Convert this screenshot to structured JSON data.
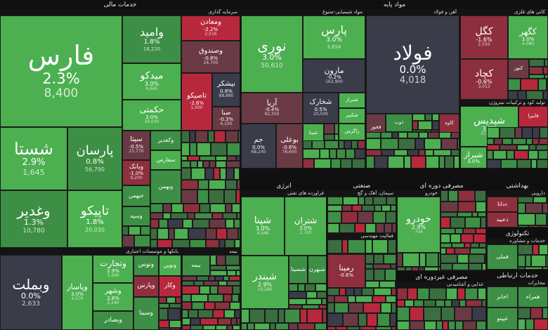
{
  "sectors": {
    "financial": "خدمات مالی",
    "basic_materials": "مواد پایه",
    "energy": "انرژی",
    "industrial": "صنعتی",
    "consumer_cyclical": "مصرفی دوره ای",
    "health": "بهداشتی",
    "technology": "تکنولوژی",
    "consumer_noncyclical": "مصرفی غیردوره ای",
    "communication": "خدمات ارتباطی"
  },
  "subsectors": {
    "investment": "سرمایه گذاری",
    "banks": "بانکها و موسسات اعتباری",
    "insurance": "بیمه",
    "chemical": "مواد شیمیایی-متنوع",
    "iron_steel": "آهن و فولاد",
    "metal_minerals": "کانی های فلزی",
    "metal_products": "تولید کود و ترکیبات نیتروژن",
    "refinery": "فراورده های نفتی",
    "cement": "سیمان، آهک و گچ",
    "industrial_activity": "فعالیت مهندسی",
    "automotive": "خودرو",
    "pharma": "دارویی",
    "computer": "خدمات و مشاوره",
    "mobile": "مخابرات",
    "food": "غذایی و آشامیدنی"
  },
  "tiles": [
    {
      "id": "fars",
      "name": "فارس",
      "change": "2.3%",
      "value": "8,400",
      "color": "g3",
      "font": 38
    },
    {
      "id": "shasta",
      "name": "شستا",
      "change": "2.9%",
      "value": "1,645",
      "color": "g3",
      "font": 24
    },
    {
      "id": "ghadir",
      "name": "وغدیر",
      "change": "1.3%",
      "value": "10,780",
      "color": "g2",
      "font": 20
    },
    {
      "id": "parsan",
      "name": "پارسان",
      "change": "0.8%",
      "value": "56,790",
      "color": "g2",
      "font": 18
    },
    {
      "id": "tapiko",
      "name": "تاپیکو",
      "change": "1.8%",
      "value": "20,030",
      "color": "g3",
      "font": 18
    },
    {
      "id": "vamid",
      "name": "وامید",
      "change": "1.8%",
      "value": "18,220",
      "color": "g2",
      "font": 16
    },
    {
      "id": "vmaaden",
      "name": "ومعادن",
      "change": "-2.2%",
      "value": "2,516",
      "color": "r3",
      "font": 10
    },
    {
      "id": "vsandogh",
      "name": "وصندوق",
      "change": "-0.8%",
      "value": "24,700",
      "color": "r1",
      "font": 10
    },
    {
      "id": "midko",
      "name": "میدکو",
      "change": "3.0%",
      "value": "4,665",
      "color": "g3",
      "font": 14
    },
    {
      "id": "hekmati",
      "name": "حکمتی",
      "change": "3.0%",
      "value": "16,030",
      "color": "g3",
      "font": 12
    },
    {
      "id": "tapsiko",
      "name": "تاصیکو",
      "change": "-2.6%",
      "value": "1,000",
      "color": "r3",
      "font": 10
    },
    {
      "id": "nishkar",
      "name": "نیشکر",
      "change": "0.8%",
      "value": "88,880",
      "color": "z",
      "font": 10
    },
    {
      "id": "saba",
      "name": "صبا",
      "change": "-0.3%",
      "value": "4,100",
      "color": "r1",
      "font": 9
    },
    {
      "id": "sita",
      "name": "سیتا",
      "change": "-0.5%",
      "value": "21,770",
      "color": "r1",
      "font": 10
    },
    {
      "id": "vghadir",
      "name": "وکغدیر",
      "change": "",
      "value": "",
      "color": "g2",
      "font": 8
    },
    {
      "id": "sfars",
      "name": "سفارس",
      "change": "",
      "value": "",
      "color": "g3",
      "font": 8
    },
    {
      "id": "vbank",
      "name": "وبانک",
      "change": "-1.0%",
      "value": "9,200",
      "color": "r2",
      "font": 9
    },
    {
      "id": "vbahman",
      "name": "وبهمن",
      "change": "",
      "value": "",
      "color": "g2",
      "font": 8
    },
    {
      "id": "khbahman",
      "name": "خبهمن",
      "change": "",
      "value": "",
      "color": "g2",
      "font": 8
    },
    {
      "id": "vsapa",
      "name": "وسپه",
      "change": "",
      "value": "",
      "color": "g2",
      "font": 8
    },
    {
      "id": "vmelat",
      "name": "وبملت",
      "change": "0.0%",
      "value": "2,633",
      "color": "z",
      "font": 20
    },
    {
      "id": "vtejarat",
      "name": "وتجارت",
      "change": "2.9%",
      "value": "1,900",
      "color": "g3",
      "font": 12
    },
    {
      "id": "vpasar",
      "name": "وپاسار",
      "change": "3.0%",
      "value": "4,570",
      "color": "g3",
      "font": 11
    },
    {
      "id": "vshahr",
      "name": "وشهر",
      "change": "2.8%",
      "value": "2,240",
      "color": "g3",
      "font": 10
    },
    {
      "id": "vsadr",
      "name": "وبصادر",
      "change": "",
      "value": "",
      "color": "g2",
      "font": 9
    },
    {
      "id": "vtoos",
      "name": "وتوس",
      "change": "",
      "value": "",
      "color": "g2",
      "font": 9
    },
    {
      "id": "vparis",
      "name": "وپارس",
      "change": "",
      "value": "",
      "color": "r2",
      "font": 9
    },
    {
      "id": "vkar",
      "name": "وکار",
      "change": "",
      "value": "",
      "color": "r3",
      "font": 9
    },
    {
      "id": "vsinaa",
      "name": "وسینا",
      "change": "",
      "value": "",
      "color": "g2",
      "font": 9
    },
    {
      "id": "novin",
      "name": "ونوین",
      "change": "",
      "value": "",
      "color": "g3",
      "font": 8
    },
    {
      "id": "bime",
      "name": "بیمه",
      "change": "",
      "value": "",
      "color": "g2",
      "font": 8
    },
    {
      "id": "nori",
      "name": "نوری",
      "change": "3.0%",
      "value": "50,610",
      "color": "g3",
      "font": 20
    },
    {
      "id": "pars",
      "name": "پارس",
      "change": "3.0%",
      "value": "3,654",
      "color": "g3",
      "font": 16
    },
    {
      "id": "marun",
      "name": "مارون",
      "change": "-0.2%",
      "value": "162,900",
      "color": "z",
      "font": 11
    },
    {
      "id": "arya",
      "name": "آریا",
      "change": "-0.4%",
      "value": "92,350",
      "color": "r1",
      "font": 11
    },
    {
      "id": "shekhark",
      "name": "شخارک",
      "change": "0.5%",
      "value": "20,500",
      "color": "z",
      "font": 10
    },
    {
      "id": "jam",
      "name": "جم",
      "change": "0.0%",
      "value": "68,240",
      "color": "z",
      "font": 10
    },
    {
      "id": "bouali",
      "name": "بوعلی",
      "change": "-0.6%",
      "value": "78,600",
      "color": "r1",
      "font": 10
    },
    {
      "id": "shiraz",
      "name": "شیراز",
      "change": "",
      "value": "",
      "color": "g3",
      "font": 7
    },
    {
      "id": "shekabir",
      "name": "شکبیر",
      "change": "",
      "value": "",
      "color": "g3",
      "font": 7
    },
    {
      "id": "shepana",
      "name": "شپنا",
      "change": "",
      "value": "",
      "color": "g3",
      "font": 7
    },
    {
      "id": "zagros",
      "name": "زاگرس",
      "change": "",
      "value": "",
      "color": "g3",
      "font": 7
    },
    {
      "id": "folad",
      "name": "فولاد",
      "change": "0.0%",
      "value": "4,018",
      "color": "z",
      "font": 28
    },
    {
      "id": "fakhooz",
      "name": "فخوز",
      "change": "",
      "value": "",
      "color": "r1",
      "font": 7
    },
    {
      "id": "zob",
      "name": "ذوب",
      "change": "",
      "value": "",
      "color": "g2",
      "font": 7
    },
    {
      "id": "kave",
      "name": "کاوه",
      "change": "",
      "value": "",
      "color": "r2",
      "font": 7
    },
    {
      "id": "kegol",
      "name": "کگل",
      "change": "-1.6%",
      "value": "2,593",
      "color": "r2",
      "font": 14
    },
    {
      "id": "kegohar",
      "name": "کگهر",
      "change": "3.0%",
      "value": "4,080",
      "color": "g3",
      "font": 12
    },
    {
      "id": "kechad",
      "name": "کچاد",
      "change": "-0.6%",
      "value": "3,013",
      "color": "r2",
      "font": 14
    },
    {
      "id": "kenor",
      "name": "کنور",
      "change": "",
      "value": "",
      "color": "r1",
      "font": 7
    },
    {
      "id": "shepdis",
      "name": "شپدیس",
      "change": "3.0%",
      "value": "272,180",
      "color": "g3",
      "font": 14
    },
    {
      "id": "shiraz2",
      "name": "شیراز",
      "change": "3.0%",
      "value": "",
      "color": "g3",
      "font": 11
    },
    {
      "id": "fabira",
      "name": "فابیرا",
      "change": "",
      "value": "",
      "color": "r3",
      "font": 7
    },
    {
      "id": "shepna",
      "name": "شپنا",
      "change": "3.0%",
      "value": "4,046",
      "color": "g3",
      "font": 14
    },
    {
      "id": "shetran",
      "name": "شتران",
      "change": "3.0%",
      "value": "2,720",
      "color": "g3",
      "font": 12
    },
    {
      "id": "shebandar",
      "name": "شبندر",
      "change": "2.9%",
      "value": "10,280",
      "color": "g3",
      "font": 14
    },
    {
      "id": "shesina",
      "name": "شسینا",
      "change": "",
      "value": "",
      "color": "g2",
      "font": 8
    },
    {
      "id": "shbahran",
      "name": "شبهرن",
      "change": "",
      "value": "",
      "color": "g2",
      "font": 8
    },
    {
      "id": "ramina",
      "name": "رمپنا",
      "change": "-0.6%",
      "value": "",
      "color": "r2",
      "font": 11
    },
    {
      "id": "khodro",
      "name": "خودرو",
      "change": "2.9%",
      "value": "704",
      "color": "g3",
      "font": 14
    },
    {
      "id": "dadi",
      "name": "ددانا",
      "change": "",
      "value": "",
      "color": "r2",
      "font": 8
    },
    {
      "id": "digol",
      "name": "دعبید",
      "change": "",
      "value": "",
      "color": "r2",
      "font": 8
    },
    {
      "id": "fameli",
      "name": "فملی",
      "change": "",
      "value": "",
      "color": "g2",
      "font": 8
    },
    {
      "id": "ghsina",
      "name": "غپینو",
      "change": "",
      "value": "",
      "color": "g2",
      "font": 8
    },
    {
      "id": "akhaber",
      "name": "اخابر",
      "change": "",
      "value": "",
      "color": "g2",
      "font": 8
    },
    {
      "id": "hamrah",
      "name": "همراه",
      "change": "",
      "value": "",
      "color": "g2",
      "font": 8
    }
  ]
}
